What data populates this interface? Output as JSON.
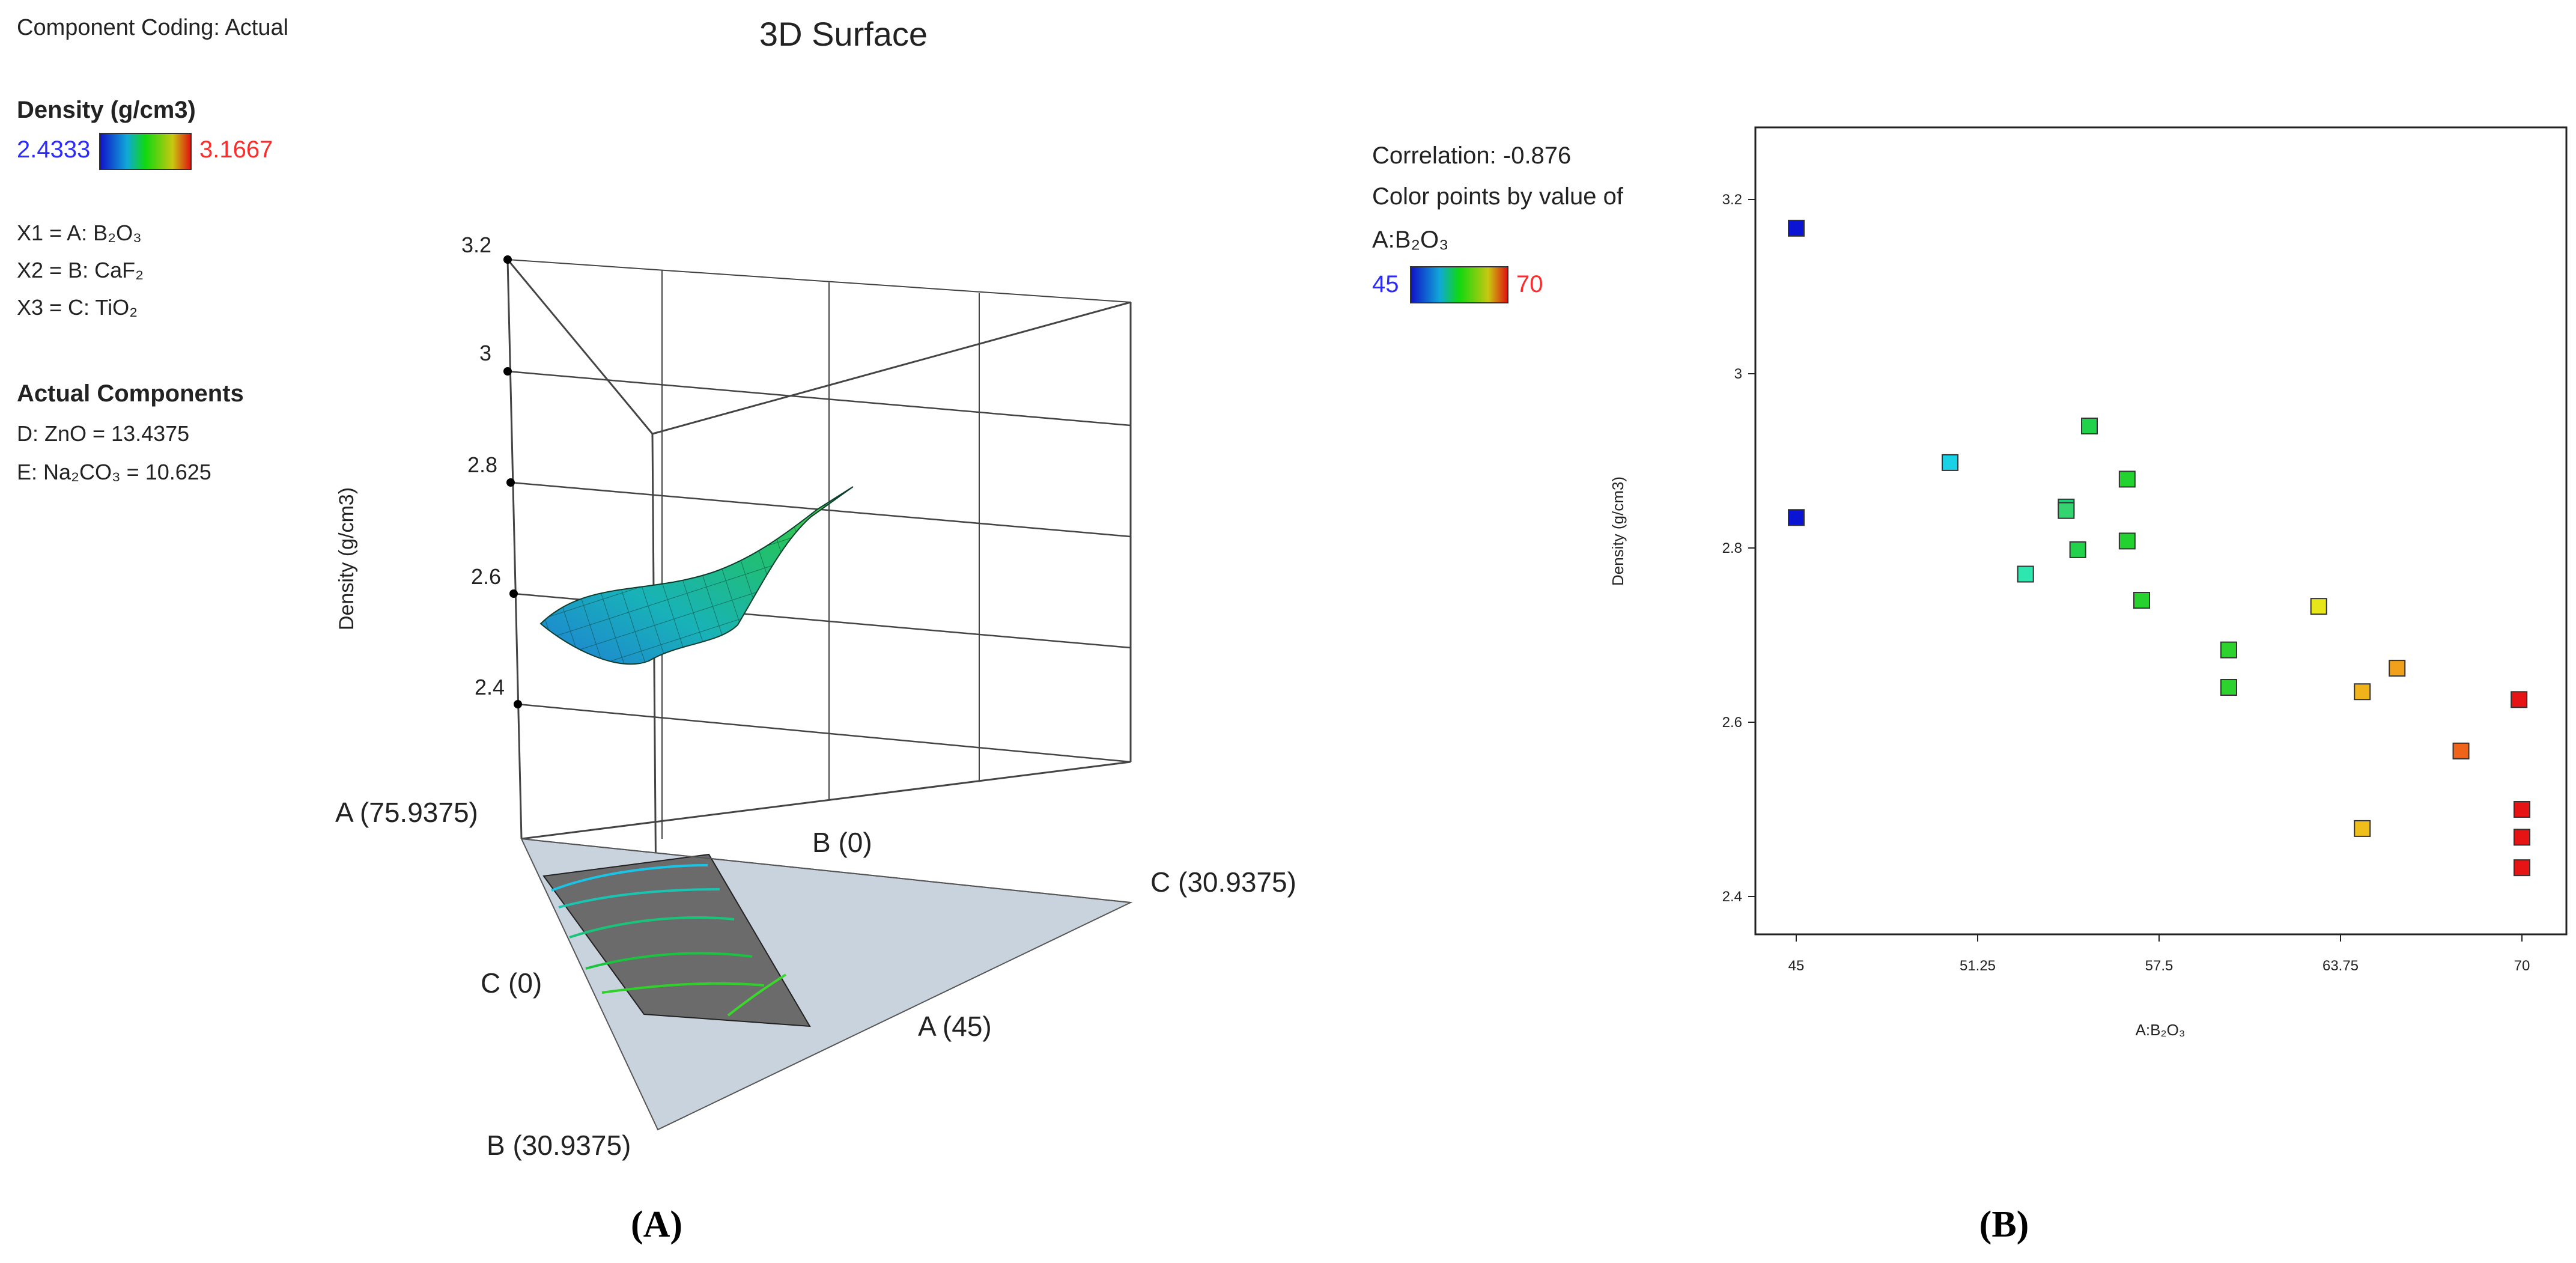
{
  "panel_a": {
    "coding": "Component Coding: Actual",
    "title": "3D Surface",
    "response_label": "Density (g/cm3)",
    "response_min": "2.4333",
    "response_max": "3.1667",
    "factors": [
      "X1 = A: B₂O₃",
      "X2 = B: CaF₂",
      "X3 = C: TiO₂"
    ],
    "actual_components_heading": "Actual Components",
    "actual_components": [
      "D: ZnO = 13.4375",
      "E: Na₂CO₃ = 10.625"
    ],
    "vertex_labels": {
      "a_max": "A (75.9375)",
      "b_zero": "B (0)",
      "c_max": "C (30.9375)",
      "c_zero": "C (0)",
      "a_min": "A (45)",
      "b_max": "B (30.9375)"
    },
    "panel_label": "(A)"
  },
  "panel_b": {
    "correlation": "Correlation: -0.876",
    "color_by": "Color points by value of",
    "color_var": "A:B₂O₃",
    "color_min": "45",
    "color_max": "70",
    "panel_label": "(B)"
  },
  "colors": {
    "min_text": "#2b2bff",
    "max_text": "#ff2b2b",
    "plane": "#c9d3de",
    "region": "#6b6b6b"
  },
  "chart_data": [
    {
      "type": "surface",
      "title": "3D Surface",
      "zlabel": "Density (g/cm3)",
      "z_ticks": [
        2.4,
        2.6,
        2.8,
        3.0,
        3.2
      ],
      "zlim": [
        2.4,
        3.2
      ],
      "legend": {
        "min": 2.4333,
        "max": 3.1667
      }
    },
    {
      "type": "scatter",
      "xlabel": "A:B₂O₃",
      "ylabel": "Density (g/cm3)",
      "xlim": [
        45,
        70
      ],
      "ylim": [
        2.4,
        3.2
      ],
      "x_ticks": [
        45,
        51.25,
        57.5,
        63.75,
        70
      ],
      "x_tick_labels": [
        "45",
        "51.25",
        "57.5",
        "63.75",
        "70"
      ],
      "y_ticks": [
        2.4,
        2.6,
        2.8,
        3.0,
        3.2
      ],
      "y_tick_labels": [
        "2.4",
        "2.6",
        "2.8",
        "3",
        "3.2"
      ],
      "points": [
        {
          "x": 45,
          "y": 3.167,
          "color": "#0a14d2"
        },
        {
          "x": 45,
          "y": 2.835,
          "color": "#0a14d2"
        },
        {
          "x": 50.3,
          "y": 2.898,
          "color": "#1ad2e6"
        },
        {
          "x": 52.9,
          "y": 2.77,
          "color": "#2ee6b0"
        },
        {
          "x": 54.3,
          "y": 2.847,
          "color": "#1fd27a"
        },
        {
          "x": 54.3,
          "y": 2.843,
          "color": "#35d470"
        },
        {
          "x": 54.7,
          "y": 2.798,
          "color": "#22d24a"
        },
        {
          "x": 55.1,
          "y": 2.94,
          "color": "#1fd24a"
        },
        {
          "x": 56.4,
          "y": 2.879,
          "color": "#22d22e"
        },
        {
          "x": 56.4,
          "y": 2.808,
          "color": "#22d22e"
        },
        {
          "x": 56.9,
          "y": 2.74,
          "color": "#28d22e"
        },
        {
          "x": 59.9,
          "y": 2.683,
          "color": "#2ed22e"
        },
        {
          "x": 59.9,
          "y": 2.64,
          "color": "#2ed22e"
        },
        {
          "x": 63.0,
          "y": 2.733,
          "color": "#e6e61a"
        },
        {
          "x": 64.5,
          "y": 2.635,
          "color": "#f0b41a"
        },
        {
          "x": 64.5,
          "y": 2.478,
          "color": "#f0be1a"
        },
        {
          "x": 65.7,
          "y": 2.662,
          "color": "#f0a01a"
        },
        {
          "x": 67.9,
          "y": 2.567,
          "color": "#f0641a"
        },
        {
          "x": 69.9,
          "y": 2.626,
          "color": "#e61414"
        },
        {
          "x": 70,
          "y": 2.5,
          "color": "#e61414"
        },
        {
          "x": 70,
          "y": 2.468,
          "color": "#e61414"
        },
        {
          "x": 70,
          "y": 2.433,
          "color": "#e61414"
        }
      ]
    }
  ]
}
